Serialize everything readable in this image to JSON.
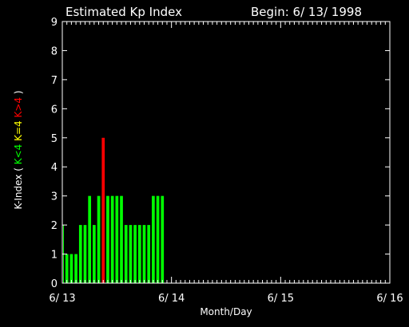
{
  "chart_data": {
    "type": "bar",
    "title": "Estimated Kp Index",
    "subtitle": "Begin: 6/ 13/ 1998",
    "xlabel": "Month/Day",
    "ylabel_prefix": "K-Index (",
    "ylabel_parts": [
      {
        "text": "K<4",
        "color": "#00ff00"
      },
      {
        "text": "K=4",
        "color": "#ffff00"
      },
      {
        "text": "K>4",
        "color": "#ff0000"
      }
    ],
    "ylabel_suffix": ")",
    "ylim": [
      0,
      9
    ],
    "yticks": [
      "0",
      "1",
      "2",
      "3",
      "4",
      "5",
      "6",
      "7",
      "8",
      "9"
    ],
    "xlim": [
      0,
      24
    ],
    "xticks": [
      {
        "pos": 0,
        "label": "6/ 13"
      },
      {
        "pos": 8,
        "label": "6/ 14"
      },
      {
        "pos": 16,
        "label": "6/ 15"
      },
      {
        "pos": 24,
        "label": "6/ 16"
      }
    ],
    "values": [
      2,
      1,
      1,
      1,
      2,
      2,
      3,
      2,
      3,
      5,
      3,
      3,
      3,
      3,
      2,
      2,
      2,
      2,
      2,
      2,
      3,
      3,
      3
    ],
    "colors": {
      "low": "#00ff00",
      "equal": "#ffff00",
      "high": "#ff0000"
    },
    "grid": false
  }
}
